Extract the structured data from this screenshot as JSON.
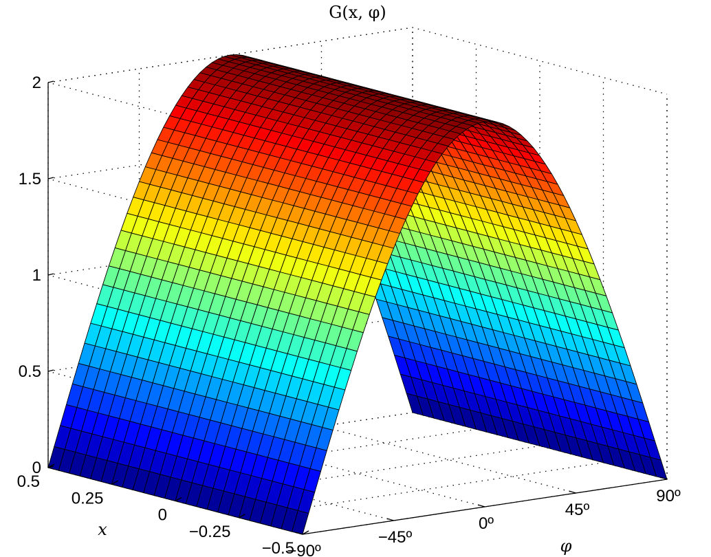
{
  "chart_data": {
    "type": "surface",
    "title": "G(x, φ)",
    "xlabel": "x",
    "ylabel": "φ",
    "x_ticks": [
      "0.5",
      "0.25",
      "0",
      "−0.25",
      "−0.5"
    ],
    "phi_ticks": [
      "−90º",
      "−45º",
      "0º",
      "45º",
      "90º"
    ],
    "z_ticks": [
      "0",
      "0.5",
      "1",
      "1.5",
      "2"
    ],
    "xlim": [
      -0.5,
      0.5
    ],
    "phi_lim_deg": [
      -90,
      90
    ],
    "zlim": [
      0,
      2
    ],
    "grid": true,
    "colormap": "jet",
    "surface": {
      "description": "G(x, φ) ≈ 2·cos(φ) for all x in [-0.5, 0.5]; maximum 2 at φ = 0º, minimum 0 at φ = ±90º",
      "x": [
        -0.5,
        -0.25,
        0,
        0.25,
        0.5
      ],
      "phi_deg": [
        -90,
        -67.5,
        -45,
        -22.5,
        0,
        22.5,
        45,
        67.5,
        90
      ],
      "z_profile": [
        0.0,
        0.77,
        1.41,
        1.85,
        2.0,
        1.85,
        1.41,
        0.77,
        0.0
      ]
    }
  }
}
